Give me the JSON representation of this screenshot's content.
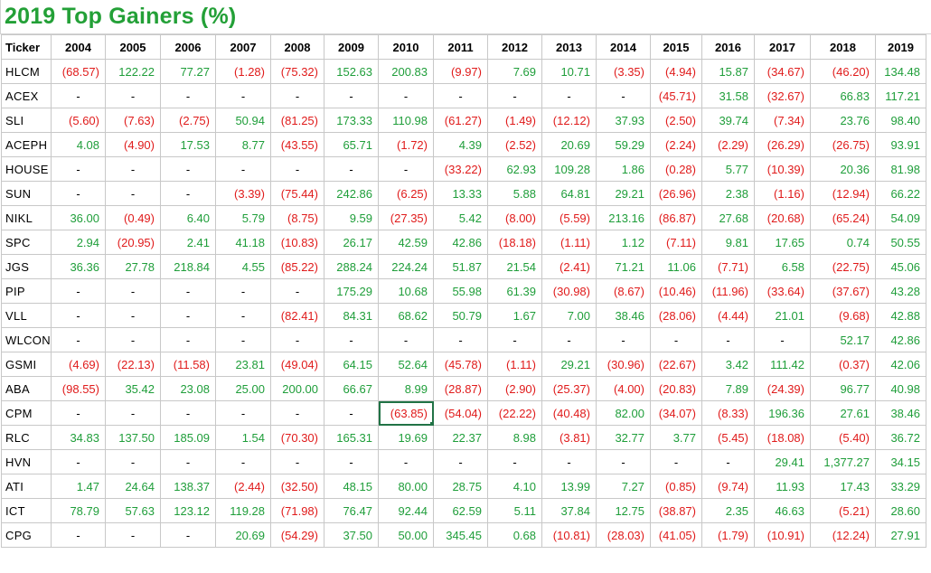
{
  "title": "2019 Top Gainers (%)",
  "colors": {
    "title": "#23a037",
    "positive": "#1f9e3a",
    "negative": "#e01b1b"
  },
  "headers": [
    "Ticker",
    "2004",
    "2005",
    "2006",
    "2007",
    "2008",
    "2009",
    "2010",
    "2011",
    "2012",
    "2013",
    "2014",
    "2015",
    "2016",
    "2017",
    "2018",
    "2019"
  ],
  "rows": [
    {
      "ticker": "HLCM",
      "cells": [
        "(68.57)",
        "122.22",
        "77.27",
        "(1.28)",
        "(75.32)",
        "152.63",
        "200.83",
        "(9.97)",
        "7.69",
        "10.71",
        "(3.35)",
        "(4.94)",
        "15.87",
        "(34.67)",
        "(46.20)",
        "134.48"
      ]
    },
    {
      "ticker": "ACEX",
      "cells": [
        "-",
        "-",
        "-",
        "-",
        "-",
        "-",
        "-",
        "-",
        "-",
        "-",
        "-",
        "(45.71)",
        "31.58",
        "(32.67)",
        "66.83",
        "117.21"
      ]
    },
    {
      "ticker": "SLI",
      "cells": [
        "(5.60)",
        "(7.63)",
        "(2.75)",
        "50.94",
        "(81.25)",
        "173.33",
        "110.98",
        "(61.27)",
        "(1.49)",
        "(12.12)",
        "37.93",
        "(2.50)",
        "39.74",
        "(7.34)",
        "23.76",
        "98.40"
      ]
    },
    {
      "ticker": "ACEPH",
      "cells": [
        "4.08",
        "(4.90)",
        "17.53",
        "8.77",
        "(43.55)",
        "65.71",
        "(1.72)",
        "4.39",
        "(2.52)",
        "20.69",
        "59.29",
        "(2.24)",
        "(2.29)",
        "(26.29)",
        "(26.75)",
        "93.91"
      ]
    },
    {
      "ticker": "HOUSE",
      "cells": [
        "-",
        "-",
        "-",
        "-",
        "-",
        "-",
        "-",
        "(33.22)",
        "62.93",
        "109.28",
        "1.86",
        "(0.28)",
        "5.77",
        "(10.39)",
        "20.36",
        "81.98"
      ]
    },
    {
      "ticker": "SUN",
      "cells": [
        "-",
        "-",
        "-",
        "(3.39)",
        "(75.44)",
        "242.86",
        "(6.25)",
        "13.33",
        "5.88",
        "64.81",
        "29.21",
        "(26.96)",
        "2.38",
        "(1.16)",
        "(12.94)",
        "66.22"
      ]
    },
    {
      "ticker": "NIKL",
      "cells": [
        "36.00",
        "(0.49)",
        "6.40",
        "5.79",
        "(8.75)",
        "9.59",
        "(27.35)",
        "5.42",
        "(8.00)",
        "(5.59)",
        "213.16",
        "(86.87)",
        "27.68",
        "(20.68)",
        "(65.24)",
        "54.09"
      ]
    },
    {
      "ticker": "SPC",
      "cells": [
        "2.94",
        "(20.95)",
        "2.41",
        "41.18",
        "(10.83)",
        "26.17",
        "42.59",
        "42.86",
        "(18.18)",
        "(1.11)",
        "1.12",
        "(7.11)",
        "9.81",
        "17.65",
        "0.74",
        "50.55"
      ]
    },
    {
      "ticker": "JGS",
      "cells": [
        "36.36",
        "27.78",
        "218.84",
        "4.55",
        "(85.22)",
        "288.24",
        "224.24",
        "51.87",
        "21.54",
        "(2.41)",
        "71.21",
        "11.06",
        "(7.71)",
        "6.58",
        "(22.75)",
        "45.06"
      ]
    },
    {
      "ticker": "PIP",
      "cells": [
        "-",
        "-",
        "-",
        "-",
        "-",
        "175.29",
        "10.68",
        "55.98",
        "61.39",
        "(30.98)",
        "(8.67)",
        "(10.46)",
        "(11.96)",
        "(33.64)",
        "(37.67)",
        "43.28"
      ]
    },
    {
      "ticker": "VLL",
      "cells": [
        "-",
        "-",
        "-",
        "-",
        "(82.41)",
        "84.31",
        "68.62",
        "50.79",
        "1.67",
        "7.00",
        "38.46",
        "(28.06)",
        "(4.44)",
        "21.01",
        "(9.68)",
        "42.88"
      ]
    },
    {
      "ticker": "WLCON",
      "cells": [
        "-",
        "-",
        "-",
        "-",
        "-",
        "-",
        "-",
        "-",
        "-",
        "-",
        "-",
        "-",
        "-",
        "-",
        "52.17",
        "42.86"
      ]
    },
    {
      "ticker": "GSMI",
      "cells": [
        "(4.69)",
        "(22.13)",
        "(11.58)",
        "23.81",
        "(49.04)",
        "64.15",
        "52.64",
        "(45.78)",
        "(1.11)",
        "29.21",
        "(30.96)",
        "(22.67)",
        "3.42",
        "111.42",
        "(0.37)",
        "42.06"
      ]
    },
    {
      "ticker": "ABA",
      "cells": [
        "(98.55)",
        "35.42",
        "23.08",
        "25.00",
        "200.00",
        "66.67",
        "8.99",
        "(28.87)",
        "(2.90)",
        "(25.37)",
        "(4.00)",
        "(20.83)",
        "7.89",
        "(24.39)",
        "96.77",
        "40.98"
      ]
    },
    {
      "ticker": "CPM",
      "cells": [
        "-",
        "-",
        "-",
        "-",
        "-",
        "-",
        "(63.85)",
        "(54.04)",
        "(22.22)",
        "(40.48)",
        "82.00",
        "(34.07)",
        "(8.33)",
        "196.36",
        "27.61",
        "38.46"
      ]
    },
    {
      "ticker": "RLC",
      "cells": [
        "34.83",
        "137.50",
        "185.09",
        "1.54",
        "(70.30)",
        "165.31",
        "19.69",
        "22.37",
        "8.98",
        "(3.81)",
        "32.77",
        "3.77",
        "(5.45)",
        "(18.08)",
        "(5.40)",
        "36.72"
      ]
    },
    {
      "ticker": "HVN",
      "cells": [
        "-",
        "-",
        "-",
        "-",
        "-",
        "-",
        "-",
        "-",
        "-",
        "-",
        "-",
        "-",
        "-",
        "29.41",
        "1,377.27",
        "34.15"
      ]
    },
    {
      "ticker": "ATI",
      "cells": [
        "1.47",
        "24.64",
        "138.37",
        "(2.44)",
        "(32.50)",
        "48.15",
        "80.00",
        "28.75",
        "4.10",
        "13.99",
        "7.27",
        "(0.85)",
        "(9.74)",
        "11.93",
        "17.43",
        "33.29"
      ]
    },
    {
      "ticker": "ICT",
      "cells": [
        "78.79",
        "57.63",
        "123.12",
        "119.28",
        "(71.98)",
        "76.47",
        "92.44",
        "62.59",
        "5.11",
        "37.84",
        "12.75",
        "(38.87)",
        "2.35",
        "46.63",
        "(5.21)",
        "28.60"
      ]
    },
    {
      "ticker": "CPG",
      "cells": [
        "-",
        "-",
        "-",
        "20.69",
        "(54.29)",
        "37.50",
        "50.00",
        "345.45",
        "0.68",
        "(10.81)",
        "(28.03)",
        "(41.05)",
        "(1.79)",
        "(10.91)",
        "(12.24)",
        "27.91"
      ]
    }
  ],
  "selected_cell": {
    "row": 14,
    "col": 6
  }
}
